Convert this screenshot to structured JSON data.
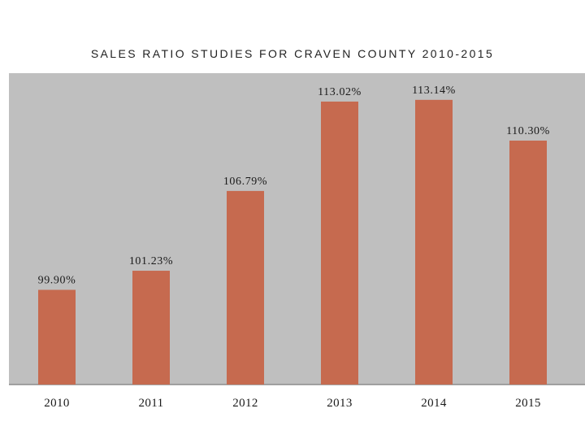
{
  "chart_data": {
    "type": "bar",
    "title": "SALES RATIO STUDIES FOR CRAVEN COUNTY 2010-2015",
    "categories": [
      "2010",
      "2011",
      "2012",
      "2013",
      "2014",
      "2015"
    ],
    "values": [
      99.9,
      101.23,
      106.79,
      113.02,
      113.14,
      110.3
    ],
    "data_labels": [
      "99.90%",
      "101.23%",
      "106.79%",
      "113.02%",
      "113.14%",
      "110.30%"
    ],
    "xlabel": "",
    "ylabel": "",
    "ylim": [
      93.3,
      115.0
    ],
    "grid": false,
    "legend": "none",
    "colors": {
      "bar": "#C66A4F",
      "plot_background": "#BFBFBF",
      "axis": "#8C8C8C"
    }
  }
}
